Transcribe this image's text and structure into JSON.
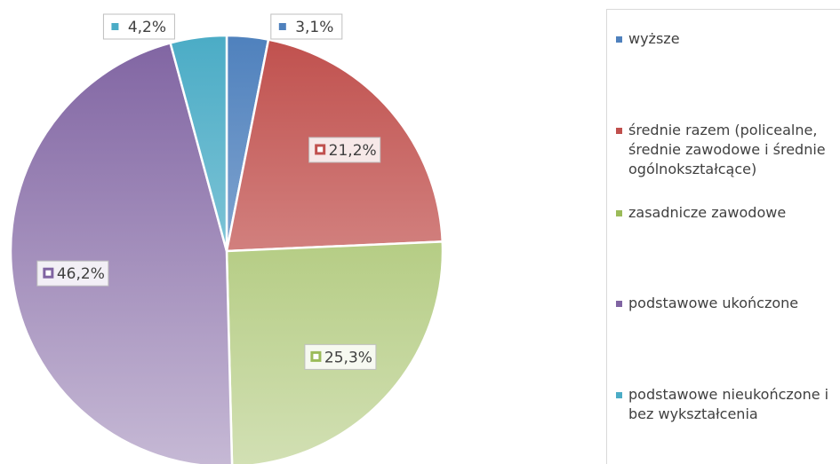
{
  "chart_data": {
    "type": "pie",
    "categories": [
      "wyższe",
      "średnie razem (policealne, średnie zawodowe i średnie ogólnokształcące)",
      "zasadnicze zawodowe",
      "podstawowe ukończone",
      "podstawowe nieukończone i bez wykształcenia"
    ],
    "values": [
      3.1,
      21.2,
      25.3,
      46.2,
      4.2
    ],
    "value_labels": [
      "3,1%",
      "21,2%",
      "25,3%",
      "46,2%",
      "4,2%"
    ],
    "colors": [
      "#4f81bd",
      "#c0504d",
      "#9bbb59",
      "#8064a2",
      "#4bacc6"
    ],
    "legend": "right"
  }
}
